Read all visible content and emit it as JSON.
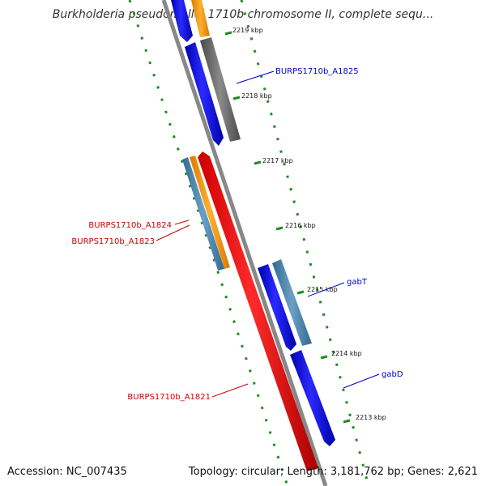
{
  "title": "Burkholderia pseudomallei 1710b chromosome II, complete sequ...",
  "footer": {
    "accession": "Accession: NC_007435",
    "summary": "Topology: circular; Length: 3,181,762 bp; Genes: 2,621"
  },
  "ticks": [
    {
      "label": "2219 kbp"
    },
    {
      "label": "2218 kbp"
    },
    {
      "label": "2217 kbp"
    },
    {
      "label": "2216 kbp"
    },
    {
      "label": "2215 kbp"
    },
    {
      "label": "2214 kbp"
    },
    {
      "label": "2213 kbp"
    }
  ],
  "gene_labels": [
    {
      "text": "BURPS1710b_A1825",
      "color": "#0000cc"
    },
    {
      "text": "BURPS1710b_A1824",
      "color": "#cc0000"
    },
    {
      "text": "BURPS1710b_A1823",
      "color": "#cc0000"
    },
    {
      "text": "gabT",
      "color": "#0000cc"
    },
    {
      "text": "gabD",
      "color": "#0000cc"
    },
    {
      "text": "BURPS1710b_A1821",
      "color": "#cc0000"
    }
  ],
  "colors": {
    "forward_cds": "#0000ff",
    "reverse_cds": "#ff0000",
    "steelblue_feature": "#4682b4",
    "orange_feature": "#ff9900",
    "grey_feature": "#666666",
    "backbone": "#888888",
    "tick_dots": "#228b22"
  }
}
